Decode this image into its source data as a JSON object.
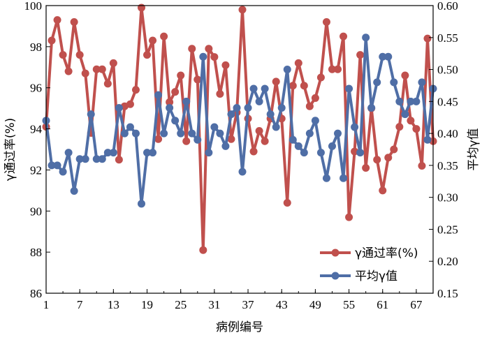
{
  "chart_data": {
    "type": "line",
    "xlabel": "病例编号",
    "ylabel_left": "γ通过率(%)",
    "ylabel_right": "平均γ值",
    "xlim": [
      1,
      70
    ],
    "ylim_left": [
      86,
      100
    ],
    "ylim_right": [
      0.15,
      0.6
    ],
    "x_ticks": [
      "1",
      "7",
      "13",
      "19",
      "25",
      "31",
      "37",
      "43",
      "49",
      "55",
      "61",
      "67"
    ],
    "y_ticks_left": [
      "86",
      "88",
      "90",
      "92",
      "94",
      "96",
      "98",
      "100"
    ],
    "y_ticks_right": [
      "0.15",
      "0.20",
      "0.25",
      "0.30",
      "0.35",
      "0.40",
      "0.45",
      "0.50",
      "0.55",
      "0.60"
    ],
    "legend_position": "bottom-right",
    "x": [
      1,
      2,
      3,
      4,
      5,
      6,
      7,
      8,
      9,
      10,
      11,
      12,
      13,
      14,
      15,
      16,
      17,
      18,
      19,
      20,
      21,
      22,
      23,
      24,
      25,
      26,
      27,
      28,
      29,
      30,
      31,
      32,
      33,
      34,
      35,
      36,
      37,
      38,
      39,
      40,
      41,
      42,
      43,
      44,
      45,
      46,
      47,
      48,
      49,
      50,
      51,
      52,
      53,
      54,
      55,
      56,
      57,
      58,
      59,
      60,
      61,
      62,
      63,
      64,
      65,
      66,
      67,
      68,
      69,
      70
    ],
    "series": [
      {
        "name": "γ通过率(%)",
        "axis": "left",
        "color": "#c0504d",
        "values": [
          94.1,
          98.3,
          99.3,
          97.6,
          96.8,
          99.2,
          97.6,
          96.7,
          93.8,
          96.9,
          96.9,
          96.2,
          97.2,
          92.5,
          95.1,
          95.2,
          95.9,
          99.9,
          97.6,
          98.3,
          93.5,
          98.5,
          95.3,
          95.8,
          96.6,
          93.4,
          97.9,
          96.4,
          88.1,
          97.9,
          97.5,
          95.7,
          97.1,
          93.5,
          94.8,
          99.8,
          94.5,
          92.9,
          93.9,
          93.4,
          94.5,
          96.3,
          94.5,
          90.4,
          96.1,
          97.2,
          96.1,
          95.1,
          95.5,
          96.5,
          99.2,
          96.9,
          96.9,
          98.5,
          89.7,
          92.9,
          97.6,
          92.1,
          95.0,
          92.5,
          91.0,
          92.6,
          93.0,
          94.1,
          96.6,
          94.4,
          94.0,
          92.2,
          98.4,
          93.4
        ]
      },
      {
        "name": "平均γ值",
        "axis": "right",
        "color": "#4f6ea6",
        "values": [
          0.42,
          0.35,
          0.35,
          0.34,
          0.37,
          0.31,
          0.36,
          0.36,
          0.43,
          0.36,
          0.36,
          0.37,
          0.37,
          0.44,
          0.4,
          0.41,
          0.4,
          0.29,
          0.37,
          0.37,
          0.46,
          0.4,
          0.44,
          0.42,
          0.4,
          0.45,
          0.4,
          0.39,
          0.52,
          0.37,
          0.41,
          0.4,
          0.38,
          0.43,
          0.44,
          0.34,
          0.44,
          0.47,
          0.45,
          0.47,
          0.43,
          0.41,
          0.44,
          0.5,
          0.39,
          0.38,
          0.37,
          0.4,
          0.42,
          0.37,
          0.33,
          0.38,
          0.4,
          0.33,
          0.47,
          0.41,
          0.37,
          0.55,
          0.44,
          0.48,
          0.52,
          0.52,
          0.48,
          0.45,
          0.43,
          0.45,
          0.45,
          0.48,
          0.39,
          0.47
        ]
      }
    ]
  }
}
